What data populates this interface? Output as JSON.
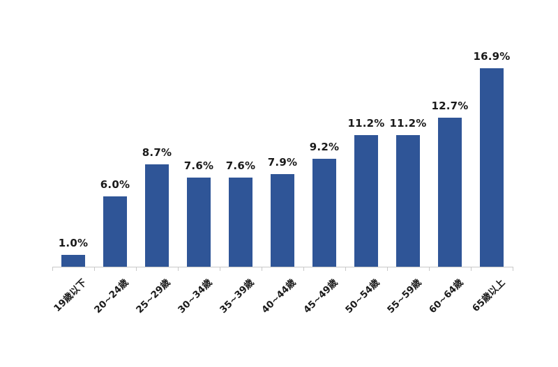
{
  "chart_data": {
    "type": "bar",
    "title": "",
    "xlabel": "",
    "ylabel": "",
    "categories": [
      "19歳以下",
      "20~24歳",
      "25~29歳",
      "30~34歳",
      "35~39歳",
      "40~44歳",
      "45~49歳",
      "50~54歳",
      "55~59歳",
      "60~64歳",
      "65歳以上"
    ],
    "values": [
      1.0,
      6.0,
      8.7,
      7.6,
      7.6,
      7.9,
      9.2,
      11.2,
      11.2,
      12.7,
      16.9
    ],
    "value_labels": [
      "1.0%",
      "6.0%",
      "8.7%",
      "7.6%",
      "7.6%",
      "7.9%",
      "9.2%",
      "11.2%",
      "11.2%",
      "12.7%",
      "16.9%"
    ],
    "ylim": [
      0,
      18
    ],
    "grid": false,
    "legend": false,
    "colors": {
      "bar": "#2F5597",
      "axis": "#C8C8C8",
      "label": "#1A1A1A"
    }
  }
}
